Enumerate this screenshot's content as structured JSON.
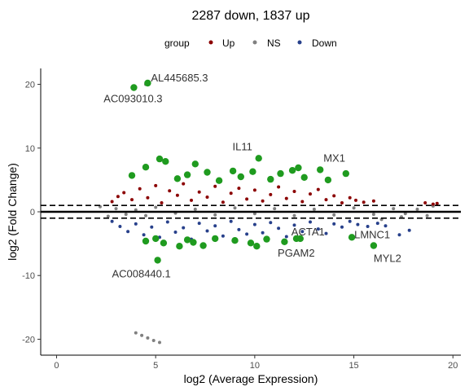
{
  "chart_data": {
    "type": "scatter",
    "title": "2287 down, 1837 up",
    "xlabel": "log2 (Average Expression)",
    "ylabel": "log2 (Fold Change)",
    "xlim": [
      -0.8,
      20.4
    ],
    "ylim": [
      -22.5,
      22.5
    ],
    "x_ticks": [
      0,
      5,
      10,
      15,
      20
    ],
    "y_ticks": [
      -20,
      -10,
      0,
      10,
      20
    ],
    "x_tick_labels": [
      "0",
      "5",
      "10",
      "15",
      "20"
    ],
    "y_tick_labels": [
      "-20",
      "-10",
      "0",
      "10",
      "20"
    ],
    "grid": false,
    "legend": {
      "title": "group",
      "position": "top",
      "entries": [
        {
          "label": "Up",
          "color": "#8b0000"
        },
        {
          "label": "NS",
          "color": "#808080"
        },
        {
          "label": "Down",
          "color": "#27408b"
        }
      ]
    },
    "colors": {
      "up": "#8b0000",
      "ns": "#808080",
      "down": "#27408b",
      "highlight": "#1f9b1f"
    },
    "reference_lines": {
      "solid": 0,
      "dashed": [
        1,
        -1
      ]
    },
    "series": [
      {
        "name": "Up",
        "points": [
          [
            2.8,
            1.6
          ],
          [
            3.1,
            2.4
          ],
          [
            3.4,
            3.0
          ],
          [
            3.8,
            1.9
          ],
          [
            4.2,
            3.6
          ],
          [
            4.6,
            2.2
          ],
          [
            5.0,
            4.1
          ],
          [
            5.3,
            1.4
          ],
          [
            5.7,
            3.3
          ],
          [
            6.1,
            2.6
          ],
          [
            6.4,
            4.4
          ],
          [
            6.8,
            1.8
          ],
          [
            7.2,
            3.1
          ],
          [
            7.6,
            2.3
          ],
          [
            8.0,
            4.0
          ],
          [
            8.4,
            1.5
          ],
          [
            8.8,
            2.9
          ],
          [
            9.2,
            3.7
          ],
          [
            9.6,
            2.0
          ],
          [
            10.0,
            3.4
          ],
          [
            10.4,
            1.7
          ],
          [
            10.8,
            2.7
          ],
          [
            11.2,
            3.9
          ],
          [
            11.6,
            2.1
          ],
          [
            12.0,
            3.2
          ],
          [
            12.4,
            1.6
          ],
          [
            12.8,
            2.8
          ],
          [
            13.2,
            3.5
          ],
          [
            13.6,
            1.9
          ],
          [
            14.0,
            2.5
          ],
          [
            14.4,
            1.4
          ],
          [
            14.8,
            2.2
          ],
          [
            15.1,
            1.8
          ],
          [
            15.5,
            1.5
          ],
          [
            16.0,
            1.7
          ],
          [
            18.6,
            1.4
          ],
          [
            19.0,
            1.2
          ],
          [
            19.2,
            1.3
          ]
        ]
      },
      {
        "name": "NS",
        "points": [
          [
            2.2,
            0.8
          ],
          [
            2.6,
            -0.7
          ],
          [
            3.0,
            0.5
          ],
          [
            3.5,
            -0.4
          ],
          [
            4.0,
            0.3
          ],
          [
            4.5,
            -0.6
          ],
          [
            5.0,
            0.7
          ],
          [
            6.0,
            -0.2
          ],
          [
            7.0,
            0.4
          ],
          [
            8.0,
            -0.5
          ],
          [
            9.0,
            0.6
          ],
          [
            10.0,
            -0.3
          ],
          [
            11.0,
            0.5
          ],
          [
            12.0,
            -0.6
          ],
          [
            13.0,
            0.4
          ],
          [
            14.0,
            -0.5
          ],
          [
            15.0,
            0.6
          ],
          [
            16.0,
            -0.4
          ],
          [
            17.0,
            0.5
          ],
          [
            17.6,
            -0.3
          ],
          [
            18.2,
            0.4
          ],
          [
            18.7,
            -0.6
          ],
          [
            19.0,
            0.9
          ],
          [
            17.4,
            -0.8
          ],
          [
            16.4,
            -1.2
          ],
          [
            4.5,
            20.0
          ],
          [
            4.0,
            -19.0
          ],
          [
            4.3,
            -19.4
          ],
          [
            4.6,
            -19.8
          ],
          [
            4.9,
            -20.2
          ],
          [
            5.2,
            -20.5
          ]
        ]
      },
      {
        "name": "Down",
        "points": [
          [
            2.8,
            -1.5
          ],
          [
            3.2,
            -2.3
          ],
          [
            3.6,
            -3.1
          ],
          [
            4.0,
            -1.9
          ],
          [
            4.4,
            -3.6
          ],
          [
            4.8,
            -2.4
          ],
          [
            5.2,
            -4.0
          ],
          [
            5.6,
            -1.6
          ],
          [
            6.0,
            -3.2
          ],
          [
            6.4,
            -2.5
          ],
          [
            6.8,
            -4.3
          ],
          [
            7.2,
            -1.8
          ],
          [
            7.6,
            -3.0
          ],
          [
            8.0,
            -2.2
          ],
          [
            8.4,
            -3.8
          ],
          [
            8.8,
            -1.5
          ],
          [
            9.2,
            -2.8
          ],
          [
            9.6,
            -3.5
          ],
          [
            10.0,
            -2.0
          ],
          [
            10.4,
            -3.3
          ],
          [
            10.8,
            -1.7
          ],
          [
            11.2,
            -2.6
          ],
          [
            11.6,
            -3.9
          ],
          [
            12.0,
            -2.1
          ],
          [
            12.4,
            -3.1
          ],
          [
            12.8,
            -1.6
          ],
          [
            13.2,
            -2.7
          ],
          [
            13.6,
            -3.4
          ],
          [
            14.0,
            -1.9
          ],
          [
            14.4,
            -2.4
          ],
          [
            14.8,
            -1.5
          ],
          [
            15.2,
            -2.0
          ],
          [
            15.7,
            -2.3
          ],
          [
            16.2,
            -1.8
          ],
          [
            16.6,
            -2.2
          ],
          [
            17.3,
            -3.6
          ],
          [
            17.8,
            -2.9
          ]
        ]
      }
    ],
    "highlighted_points": [
      [
        3.9,
        19.5
      ],
      [
        4.6,
        20.2
      ],
      [
        3.8,
        5.7
      ],
      [
        4.5,
        7.0
      ],
      [
        5.2,
        8.3
      ],
      [
        5.5,
        7.9
      ],
      [
        6.1,
        5.2
      ],
      [
        6.6,
        5.8
      ],
      [
        7.0,
        7.5
      ],
      [
        7.6,
        6.2
      ],
      [
        8.2,
        4.9
      ],
      [
        8.9,
        6.4
      ],
      [
        9.3,
        5.5
      ],
      [
        9.9,
        6.3
      ],
      [
        10.2,
        8.4
      ],
      [
        10.8,
        5.1
      ],
      [
        11.3,
        6.0
      ],
      [
        11.9,
        6.5
      ],
      [
        12.2,
        6.9
      ],
      [
        12.5,
        5.4
      ],
      [
        13.3,
        6.6
      ],
      [
        13.7,
        5.0
      ],
      [
        14.6,
        6.0
      ],
      [
        4.5,
        -4.6
      ],
      [
        5.0,
        -4.2
      ],
      [
        5.4,
        -4.9
      ],
      [
        6.2,
        -5.4
      ],
      [
        6.6,
        -4.4
      ],
      [
        6.9,
        -4.8
      ],
      [
        7.4,
        -5.3
      ],
      [
        8.0,
        -4.2
      ],
      [
        9.0,
        -4.5
      ],
      [
        9.8,
        -4.9
      ],
      [
        10.1,
        -5.4
      ],
      [
        10.6,
        -4.3
      ],
      [
        11.5,
        -4.7
      ],
      [
        12.1,
        -4.2
      ],
      [
        5.1,
        -7.6
      ],
      [
        12.3,
        -4.2
      ],
      [
        14.9,
        -4.0
      ],
      [
        16.0,
        -5.3
      ]
    ],
    "annotations": [
      {
        "text": "AL445685.3",
        "x": 4.6,
        "y": 20.2
      },
      {
        "text": "AC093010.3",
        "x": 3.9,
        "y": 19.5
      },
      {
        "text": "IL11",
        "x": 10.2,
        "y": 8.4
      },
      {
        "text": "MX1",
        "x": 13.3,
        "y": 6.6
      },
      {
        "text": "AC008440.1",
        "x": 5.1,
        "y": -7.6
      },
      {
        "text": "PGAM2",
        "x": 12.3,
        "y": -4.2
      },
      {
        "text": "ACTA1",
        "x": 12.3,
        "y": -4.2
      },
      {
        "text": "LMNC1",
        "x": 14.9,
        "y": -4.0
      },
      {
        "text": "MYL2",
        "x": 16.0,
        "y": -5.3
      }
    ]
  }
}
